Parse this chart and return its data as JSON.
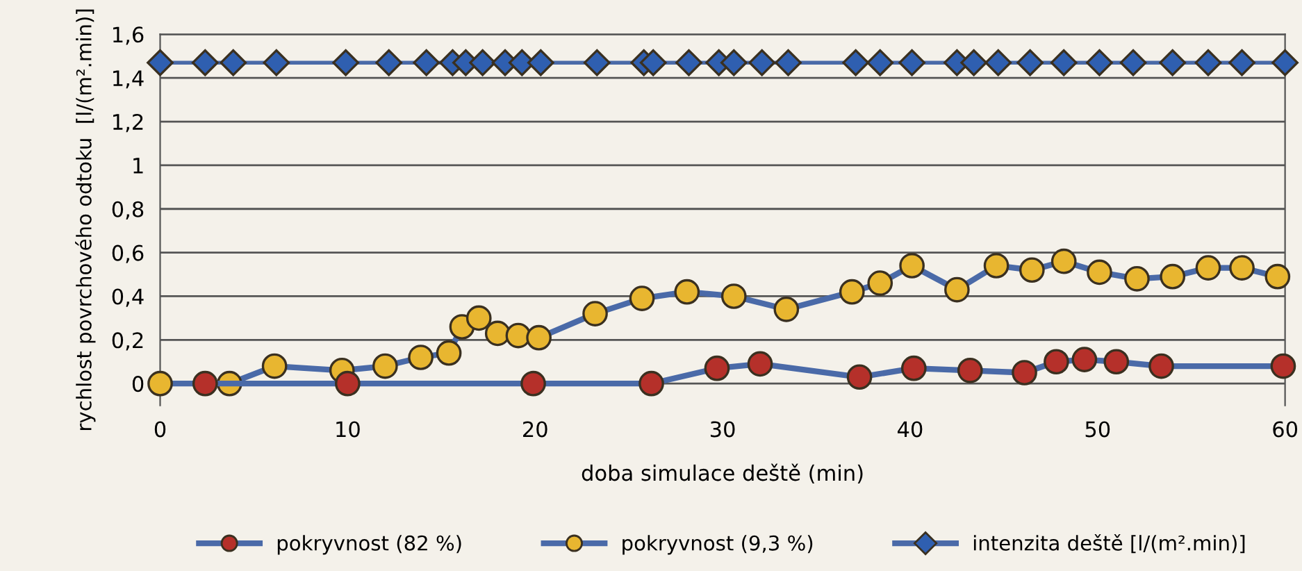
{
  "chart_data": {
    "type": "line",
    "xlabel": "doba simulace deště (min)",
    "ylabel": "rychlost povrchového odtoku  [l/(m².min)]",
    "xlim": [
      0,
      60
    ],
    "xticks": [
      0,
      10,
      20,
      30,
      40,
      50,
      60
    ],
    "ylim": [
      -0.1,
      1.6
    ],
    "yticks": [
      0,
      {
        "value": 0.2,
        "label": "0,2"
      },
      {
        "value": 0.4,
        "label": "0,4"
      },
      {
        "value": 0.6,
        "label": "0,6"
      },
      {
        "value": 0.8,
        "label": "0,8"
      },
      1,
      {
        "value": 1.2,
        "label": "1,2"
      },
      {
        "value": 1.4,
        "label": "1,4"
      },
      {
        "value": 1.6,
        "label": "1,6"
      }
    ],
    "grid": "y",
    "legend": "bottom",
    "line_style": "solid",
    "series": [
      {
        "name": "pokryvnost (82 %)",
        "color": "#b5302a",
        "marker": "circle",
        "x": [
          2.4,
          10,
          19.9,
          26.2,
          29.7,
          32.0,
          37.3,
          40.2,
          43.2,
          46.1,
          47.8,
          49.3,
          51.0,
          53.4,
          59.9
        ],
        "values": [
          0,
          0,
          0,
          0,
          0.07,
          0.09,
          0.03,
          0.07,
          0.06,
          0.05,
          0.1,
          0.11,
          0.1,
          0.08,
          0.08
        ]
      },
      {
        "name": "pokryvnost (9,3 %)",
        "color": "#e8b630",
        "marker": "circle",
        "x": [
          0,
          3.7,
          6.1,
          9.7,
          12.0,
          13.9,
          15.4,
          16.1,
          17.0,
          18.0,
          19.1,
          20.2,
          23.2,
          25.7,
          28.1,
          30.6,
          33.4,
          36.9,
          38.4,
          40.1,
          42.5,
          44.6,
          46.5,
          48.2,
          50.1,
          52.1,
          54.0,
          55.9,
          57.7,
          59.6
        ],
        "values": [
          0,
          0,
          0.08,
          0.06,
          0.08,
          0.12,
          0.14,
          0.26,
          0.3,
          0.23,
          0.22,
          0.21,
          0.32,
          0.39,
          0.42,
          0.4,
          0.34,
          0.42,
          0.46,
          0.54,
          0.43,
          0.54,
          0.52,
          0.56,
          0.51,
          0.48,
          0.49,
          0.53,
          0.53,
          0.49
        ]
      },
      {
        "name": "intenzita deště [l/(m².min)]",
        "color": "#2f5fb0",
        "marker": "diamond",
        "x": [
          0,
          2.4,
          3.9,
          6.2,
          9.9,
          12.2,
          14.2,
          15.6,
          16.3,
          17.2,
          18.4,
          19.3,
          20.3,
          23.3,
          25.8,
          26.3,
          28.2,
          29.8,
          30.6,
          32.1,
          33.5,
          37.1,
          38.4,
          40.1,
          42.5,
          43.4,
          44.7,
          46.4,
          48.2,
          50.1,
          51.9,
          54.0,
          55.9,
          57.7,
          60.0
        ],
        "values": [
          1.47,
          1.47,
          1.47,
          1.47,
          1.47,
          1.47,
          1.47,
          1.47,
          1.47,
          1.47,
          1.47,
          1.47,
          1.47,
          1.47,
          1.47,
          1.47,
          1.47,
          1.47,
          1.47,
          1.47,
          1.47,
          1.47,
          1.47,
          1.47,
          1.47,
          1.47,
          1.47,
          1.47,
          1.47,
          1.47,
          1.47,
          1.47,
          1.47,
          1.47,
          1.47
        ]
      }
    ]
  }
}
